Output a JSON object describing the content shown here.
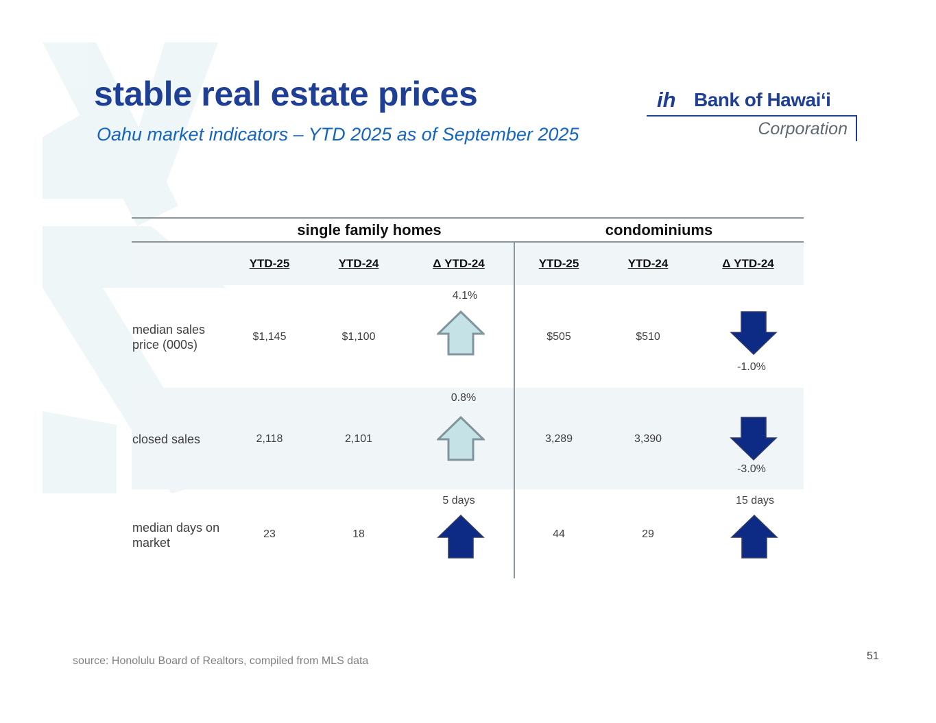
{
  "title": "stable real estate prices",
  "subtitle": "Oahu market indicators – YTD 2025 as of September 2025",
  "logo": {
    "mark": "ih",
    "name": "Bank of Hawai‘i",
    "sub": "Corporation"
  },
  "table": {
    "groups": [
      "single family homes",
      "condominiums"
    ],
    "columns": [
      "YTD-25",
      "YTD-24",
      "Δ YTD-24",
      "YTD-25",
      "YTD-24",
      "Δ YTD-24"
    ],
    "rows": [
      {
        "label": "median sales price (000s)",
        "sfh": {
          "ytd25": "$1,145",
          "ytd24": "$1,100",
          "delta": "4.1%",
          "direction": "up",
          "arrow_style": "light"
        },
        "condo": {
          "ytd25": "$505",
          "ytd24": "$510",
          "delta": "-1.0%",
          "direction": "down",
          "arrow_style": "dark"
        }
      },
      {
        "label": "closed sales",
        "sfh": {
          "ytd25": "2,118",
          "ytd24": "2,101",
          "delta": "0.8%",
          "direction": "up",
          "arrow_style": "light"
        },
        "condo": {
          "ytd25": "3,289",
          "ytd24": "3,390",
          "delta": "-3.0%",
          "direction": "down",
          "arrow_style": "dark"
        }
      },
      {
        "label": "median days on market",
        "sfh": {
          "ytd25": "23",
          "ytd24": "18",
          "delta": "5 days",
          "direction": "up",
          "arrow_style": "dark"
        },
        "condo": {
          "ytd25": "44",
          "ytd24": "29",
          "delta": "15 days",
          "direction": "up",
          "arrow_style": "dark"
        }
      }
    ],
    "colors": {
      "arrow_light_fill": "#c5e3e6",
      "arrow_light_stroke": "#7f949c",
      "arrow_dark_fill": "#0d2a85",
      "arrow_dark_stroke": "#2e3a6a"
    }
  },
  "source": "source: Honolulu Board of Realtors, compiled from MLS data",
  "page_number": "51"
}
